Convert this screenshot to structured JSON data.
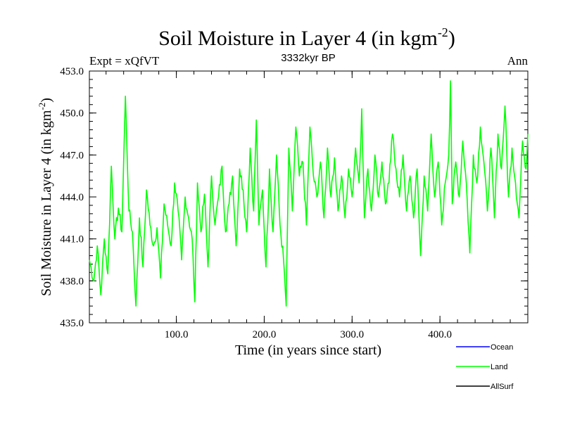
{
  "chart_data": {
    "type": "line",
    "title": "Soil Moisture in Layer 4 (in kgm",
    "title_sup": "-2",
    "title_suffix": ")",
    "subtitle_left": "Expt = xQfVT",
    "subtitle_center": "3332kyr BP",
    "subtitle_right": "Ann",
    "xlabel": "Time (in years since start)",
    "ylabel": "Soil Moisture in Layer 4 (in kgm",
    "ylabel_sup": "-2",
    "ylabel_suffix": ")",
    "xlim": [
      1,
      500
    ],
    "ylim": [
      435.0,
      453.0
    ],
    "x_ticks": [
      100,
      200,
      300,
      400
    ],
    "x_tick_labels": [
      "100.0",
      "200.0",
      "300.0",
      "400.0"
    ],
    "y_ticks": [
      435,
      438,
      441,
      444,
      447,
      450,
      453
    ],
    "y_tick_labels": [
      "435.0",
      "438.0",
      "441.0",
      "444.0",
      "447.0",
      "450.0",
      "453.0"
    ],
    "legend": [
      {
        "name": "Ocean",
        "color": "#0000ff"
      },
      {
        "name": "Land",
        "color": "#00ff00"
      },
      {
        "name": "AllSurf",
        "color": "#000000"
      }
    ],
    "series": [
      {
        "name": "Land",
        "color": "#00ff00",
        "x": [
          1,
          6,
          10,
          14,
          18,
          22,
          26,
          30,
          34,
          38,
          40,
          42,
          46,
          50,
          54,
          58,
          62,
          66,
          70,
          74,
          78,
          82,
          86,
          90,
          94,
          98,
          102,
          106,
          110,
          114,
          118,
          121,
          124,
          128,
          132,
          136,
          140,
          144,
          148,
          152,
          156,
          160,
          164,
          168,
          172,
          176,
          180,
          184,
          188,
          191,
          194,
          198,
          202,
          206,
          210,
          214,
          218,
          222,
          225,
          228,
          232,
          236,
          240,
          244,
          248,
          252,
          256,
          260,
          264,
          268,
          272,
          276,
          280,
          284,
          288,
          292,
          296,
          300,
          304,
          308,
          311,
          314,
          318,
          322,
          326,
          330,
          334,
          338,
          342,
          346,
          350,
          354,
          358,
          362,
          366,
          370,
          374,
          378,
          382,
          386,
          390,
          394,
          398,
          402,
          406,
          410,
          412,
          414,
          418,
          422,
          426,
          430,
          434,
          438,
          442,
          446,
          450,
          454,
          458,
          462,
          466,
          470,
          474,
          478,
          482,
          486,
          490,
          494,
          498,
          500
        ],
        "values": [
          439.5,
          438.0,
          440.5,
          437.0,
          441.0,
          438.5,
          446.2,
          441.0,
          443.2,
          441.5,
          446.5,
          451.2,
          443.0,
          441.5,
          436.2,
          442.5,
          439.0,
          444.5,
          442.0,
          440.5,
          441.8,
          438.2,
          443.5,
          442.0,
          440.5,
          445.0,
          443.0,
          439.5,
          444.0,
          442.5,
          441.0,
          436.5,
          445.0,
          441.5,
          444.2,
          439.0,
          445.5,
          442.0,
          444.0,
          446.2,
          441.5,
          443.5,
          445.5,
          440.5,
          446.0,
          444.5,
          441.5,
          447.5,
          443.0,
          449.5,
          442.0,
          444.5,
          439.0,
          446.0,
          441.5,
          447.0,
          442.0,
          439.5,
          436.2,
          447.5,
          443.0,
          449.0,
          445.5,
          446.5,
          442.0,
          449.0,
          445.5,
          444.0,
          446.5,
          442.5,
          447.5,
          444.0,
          446.8,
          443.0,
          445.5,
          442.5,
          446.0,
          444.0,
          447.5,
          445.0,
          450.3,
          442.5,
          446.0,
          443.0,
          447.0,
          444.0,
          446.5,
          443.5,
          445.0,
          448.5,
          446.0,
          444.0,
          447.0,
          443.0,
          445.5,
          442.5,
          446.0,
          439.8,
          445.5,
          443.0,
          448.5,
          444.0,
          446.5,
          442.0,
          445.0,
          447.0,
          452.3,
          443.5,
          446.5,
          444.0,
          448.0,
          445.0,
          440.0,
          447.0,
          445.0,
          449.0,
          446.5,
          443.0,
          447.5,
          442.5,
          448.5,
          446.0,
          450.5,
          444.0,
          447.5,
          445.0,
          442.5,
          448.0,
          446.0,
          448.5
        ]
      }
    ]
  }
}
